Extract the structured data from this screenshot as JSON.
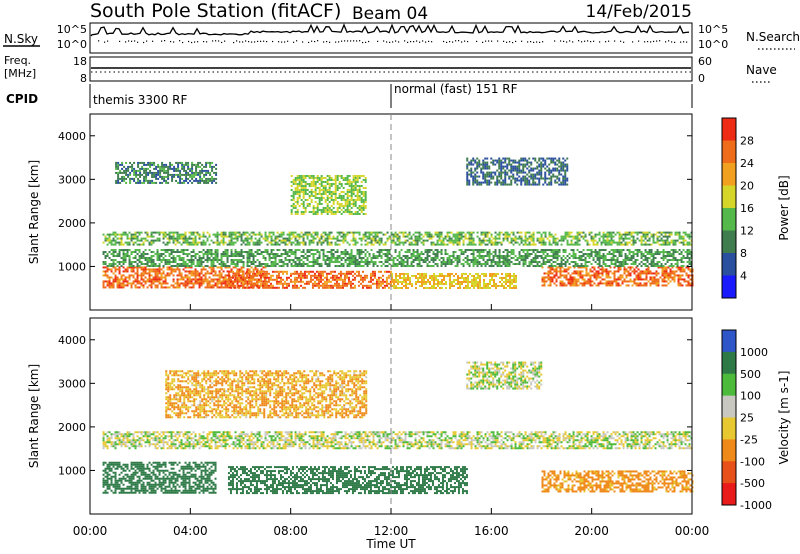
{
  "header": {
    "station": "South Pole Station (fitACF)",
    "beam": "Beam 04",
    "date": "14/Feb/2015"
  },
  "strip": {
    "nsky_label": "N.Sky",
    "nsearch_label": "N.Search",
    "freq_label_1": "Freq.",
    "freq_label_2": "[MHz]",
    "nave_label": "Nave",
    "cpid_label": "CPID",
    "left_ticks_noise": [
      "10^5",
      "10^0"
    ],
    "right_ticks_noise": [
      "10^5",
      "10^0"
    ],
    "left_ticks_freq": [
      "18",
      "8"
    ],
    "right_ticks_nave": [
      "60",
      "0"
    ],
    "cpid_1": "themis 3300 RF",
    "cpid_2": "normal (fast) 151 RF"
  },
  "colors": {
    "power_scale": [
      "#1a1aff",
      "#2a4f9e",
      "#3f7d4f",
      "#55b84a",
      "#d6d62a",
      "#f2a020",
      "#ef6c1a",
      "#ee2b14"
    ],
    "velocity_scale": [
      "#2f56c8",
      "#2e7a47",
      "#4cba3a",
      "#c8c8c0",
      "#e8c830",
      "#ef8a1a",
      "#e8501a",
      "#e81a1a"
    ]
  },
  "chart_data": [
    {
      "type": "heatmap",
      "panel": "power",
      "xlabel": "Time UT",
      "ylabel": "Slant Range [km]",
      "xlim_hours": [
        0,
        24
      ],
      "ylim": [
        0,
        4500
      ],
      "x_ticks": [
        "00:00",
        "04:00",
        "08:00",
        "12:00",
        "16:00",
        "20:00",
        "00:00"
      ],
      "y_ticks": [
        "1000",
        "2000",
        "3000",
        "4000"
      ],
      "colorbar_label": "Power [dB]",
      "colorbar_ticks": [
        "4",
        "8",
        "12",
        "16",
        "20",
        "24",
        "28"
      ],
      "colorbar_range": [
        0,
        32
      ],
      "bands": [
        {
          "t0": 0.5,
          "t1": 24,
          "r0": 1500,
          "r1": 1800,
          "value": 14
        },
        {
          "t0": 0.5,
          "t1": 7,
          "r0": 500,
          "r1": 1000,
          "value": 26
        },
        {
          "t0": 5.5,
          "t1": 12,
          "r0": 500,
          "r1": 900,
          "value": 26
        },
        {
          "t0": 12,
          "t1": 17,
          "r0": 500,
          "r1": 850,
          "value": 20
        },
        {
          "t0": 18,
          "t1": 24,
          "r0": 550,
          "r1": 1000,
          "value": 26
        },
        {
          "t0": 1,
          "t1": 5,
          "r0": 2900,
          "r1": 3400,
          "value": 10
        },
        {
          "t0": 8,
          "t1": 11,
          "r0": 2200,
          "r1": 3100,
          "value": 16
        },
        {
          "t0": 15,
          "t1": 19,
          "r0": 2900,
          "r1": 3500,
          "value": 8
        },
        {
          "t0": 0.5,
          "t1": 24,
          "r0": 1000,
          "r1": 1400,
          "value": 12
        }
      ]
    },
    {
      "type": "heatmap",
      "panel": "velocity",
      "xlabel": "Time UT",
      "ylabel": "Slant Range [km]",
      "xlim_hours": [
        0,
        24
      ],
      "ylim": [
        0,
        4500
      ],
      "x_ticks": [
        "00:00",
        "04:00",
        "08:00",
        "12:00",
        "16:00",
        "20:00",
        "00:00"
      ],
      "y_ticks": [
        "1000",
        "2000",
        "3000",
        "4000"
      ],
      "colorbar_label": "Velocity [m s-1]",
      "colorbar_ticks": [
        "1000",
        "500",
        "100",
        "25",
        "-25",
        "-100",
        "-500",
        "-1000"
      ],
      "bands": [
        {
          "t0": 0.5,
          "t1": 24,
          "r0": 1500,
          "r1": 1900,
          "value": 0
        },
        {
          "t0": 0.5,
          "t1": 5,
          "r0": 500,
          "r1": 1200,
          "value": 200
        },
        {
          "t0": 5.5,
          "t1": 15,
          "r0": 500,
          "r1": 1100,
          "value": 300
        },
        {
          "t0": 18,
          "t1": 24,
          "r0": 500,
          "r1": 1000,
          "value": -150
        },
        {
          "t0": 3,
          "t1": 11,
          "r0": 2200,
          "r1": 3300,
          "value": -100
        },
        {
          "t0": 15,
          "t1": 18,
          "r0": 2900,
          "r1": 3500,
          "value": 0
        }
      ]
    }
  ]
}
